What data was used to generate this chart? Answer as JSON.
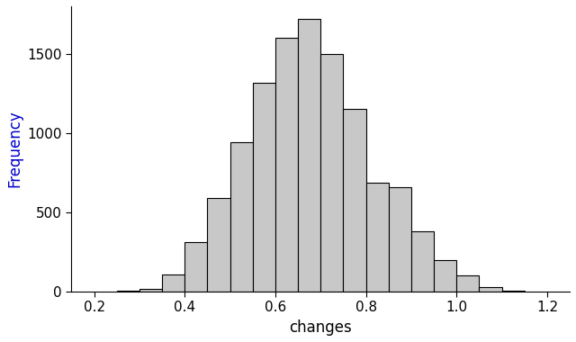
{
  "bin_edges": [
    0.25,
    0.3,
    0.35,
    0.4,
    0.45,
    0.5,
    0.55,
    0.6,
    0.65,
    0.7,
    0.75,
    0.8,
    0.85,
    0.9,
    0.95,
    1.0,
    1.05,
    1.1,
    1.15
  ],
  "frequencies": [
    5,
    20,
    110,
    310,
    590,
    940,
    1320,
    1600,
    1720,
    1500,
    1150,
    690,
    660,
    380,
    200,
    100,
    30,
    5
  ],
  "bar_color": "#c8c8c8",
  "bar_edgecolor": "#000000",
  "xlabel": "changes",
  "ylabel": "Frequency",
  "ylabel_color": "#0000cc",
  "xlabel_color": "#000000",
  "xlim": [
    0.15,
    1.25
  ],
  "ylim": [
    0,
    1800
  ],
  "xticks": [
    0.2,
    0.4,
    0.6,
    0.8,
    1.0,
    1.2
  ],
  "yticks": [
    0,
    500,
    1000,
    1500
  ],
  "background_color": "#ffffff",
  "tick_color": "#000000",
  "axis_color": "#000000",
  "xlabel_fontsize": 12,
  "ylabel_fontsize": 12,
  "tick_fontsize": 11
}
